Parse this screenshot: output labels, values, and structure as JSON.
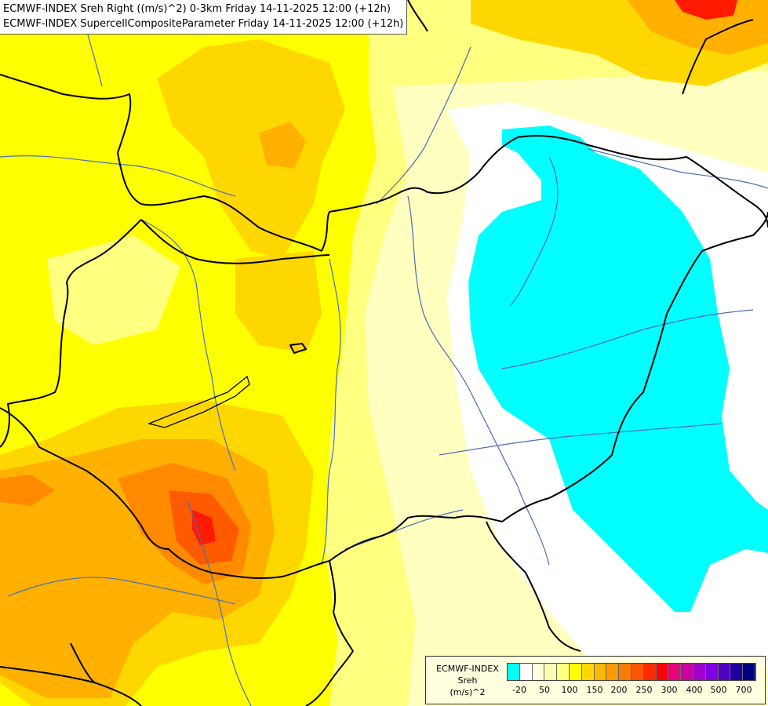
{
  "header": {
    "line1": "ECMWF-INDEX Sreh Right ((m/s)^2) 0-3km Friday 14-11-2025 12:00 (+12h)",
    "line2": "ECMWF-INDEX SupercellCompositeParameter Friday 14-11-2025 12:00 (+12h)"
  },
  "legend": {
    "title_line1": "ECMWF-INDEX",
    "title_line2": "Sreh",
    "title_line3": "(m/s)^2",
    "colors": [
      "#00ffff",
      "#ffffff",
      "#ffffe0",
      "#ffffb0",
      "#ffff80",
      "#ffff00",
      "#ffd700",
      "#ffb700",
      "#ff9a00",
      "#ff7a00",
      "#ff5500",
      "#ff2a00",
      "#ff0000",
      "#e6007a",
      "#cc00a0",
      "#a000cc",
      "#8000e0",
      "#5000c0",
      "#2000a0",
      "#000080"
    ],
    "ticks": [
      "-20",
      "50",
      "100",
      "150",
      "200",
      "250",
      "300",
      "400",
      "500",
      "700"
    ]
  },
  "map": {
    "colors": {
      "background": "#ffff00",
      "light_yellow": "#ffff80",
      "pale_yellow": "#ffffc0",
      "white": "#ffffff",
      "cyan": "#00ffff",
      "gold": "#ffd700",
      "orange": "#ffb000",
      "dark_orange": "#ff8a00",
      "red_orange": "#ff5a00",
      "red": "#ff1a00",
      "border_black": "#000000",
      "river_blue": "#4a6fb0"
    }
  }
}
